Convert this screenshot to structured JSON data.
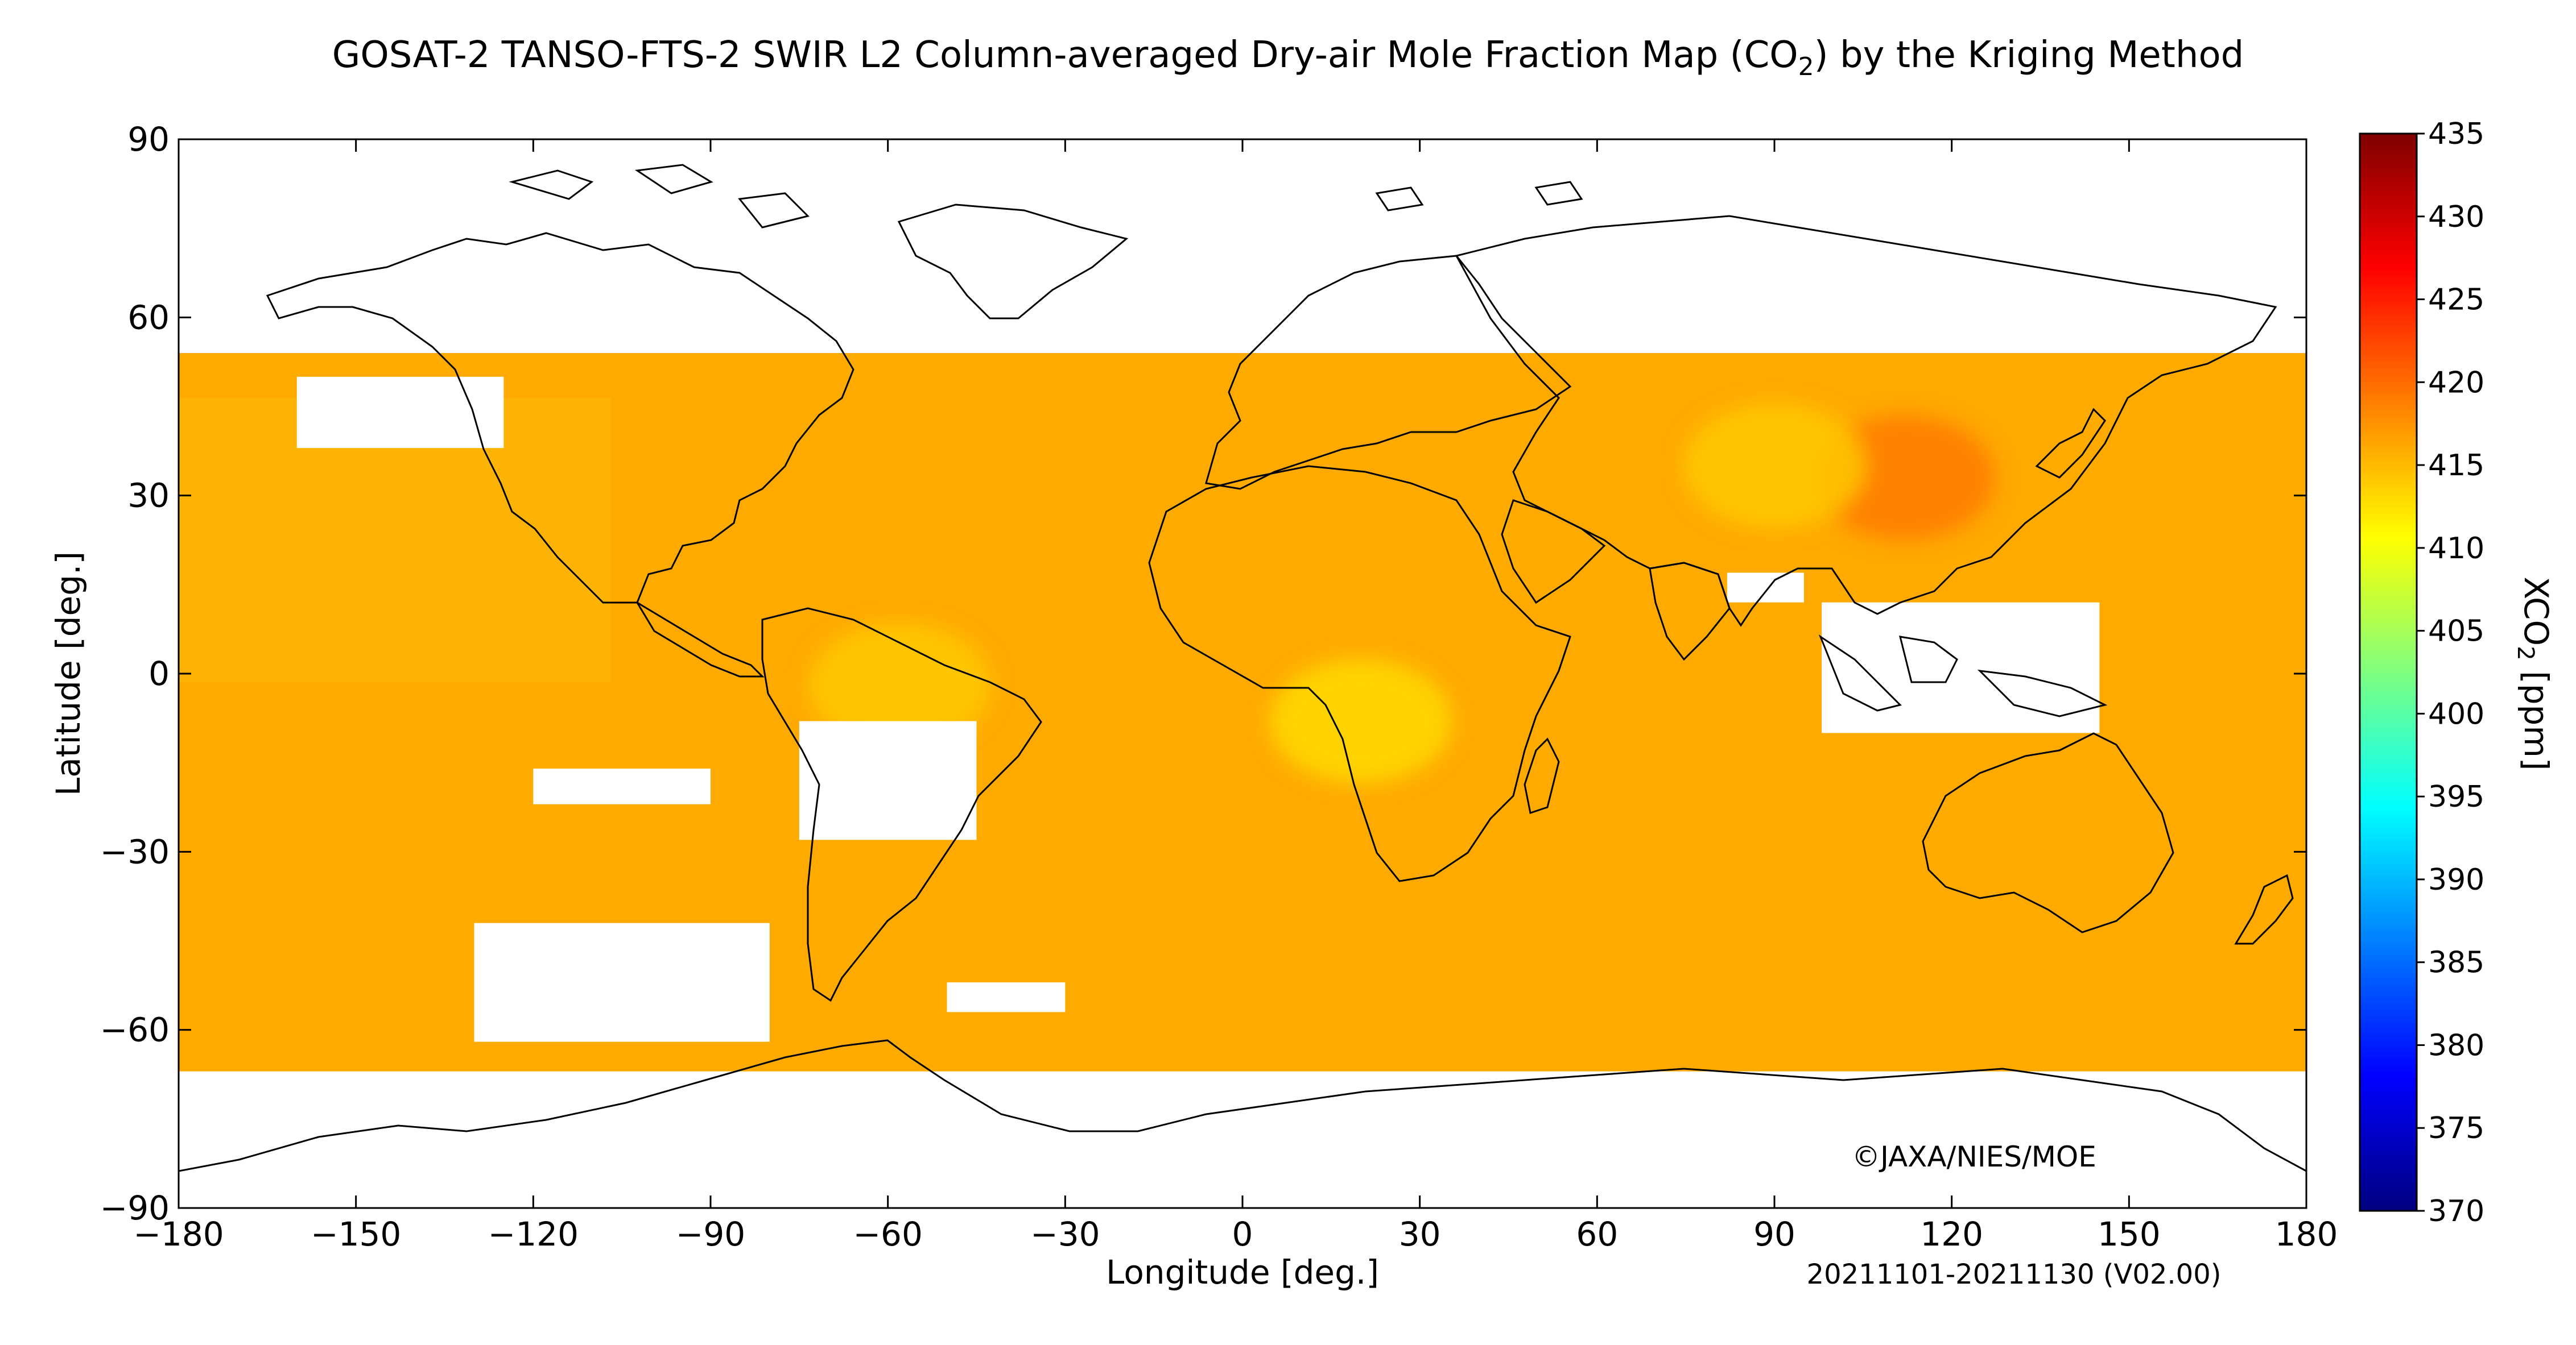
{
  "title": {
    "prefix": "GOSAT-2 TANSO-FTS-2 SWIR L2 Column-averaged Dry-air Mole Fraction Map (CO",
    "sub": "2",
    "suffix": ") by the Kriging Method"
  },
  "axes": {
    "xlabel": "Longitude [deg.]",
    "ylabel": "Latitude [deg.]",
    "xlim": [
      -180,
      180
    ],
    "ylim": [
      -90,
      90
    ],
    "x_ticks": [
      {
        "value": -180,
        "label": "−180"
      },
      {
        "value": -150,
        "label": "−150"
      },
      {
        "value": -120,
        "label": "−120"
      },
      {
        "value": -90,
        "label": "−90"
      },
      {
        "value": -60,
        "label": "−60"
      },
      {
        "value": -30,
        "label": "−30"
      },
      {
        "value": 0,
        "label": "0"
      },
      {
        "value": 30,
        "label": "30"
      },
      {
        "value": 60,
        "label": "60"
      },
      {
        "value": 90,
        "label": "90"
      },
      {
        "value": 120,
        "label": "120"
      },
      {
        "value": 150,
        "label": "150"
      },
      {
        "value": 180,
        "label": "180"
      }
    ],
    "y_ticks": [
      {
        "value": 90,
        "label": "90"
      },
      {
        "value": 60,
        "label": "60"
      },
      {
        "value": 30,
        "label": "30"
      },
      {
        "value": 0,
        "label": "0"
      },
      {
        "value": -30,
        "label": "−30"
      },
      {
        "value": -60,
        "label": "−60"
      },
      {
        "value": -90,
        "label": "−90"
      }
    ]
  },
  "colorbar": {
    "label_prefix": "XCO",
    "label_sub": "2",
    "label_suffix": " [ppm]",
    "min": 370,
    "max": 435,
    "ticks": [
      {
        "value": 435,
        "label": "435"
      },
      {
        "value": 430,
        "label": "430"
      },
      {
        "value": 425,
        "label": "425"
      },
      {
        "value": 420,
        "label": "420"
      },
      {
        "value": 415,
        "label": "415"
      },
      {
        "value": 410,
        "label": "410"
      },
      {
        "value": 405,
        "label": "405"
      },
      {
        "value": 400,
        "label": "400"
      },
      {
        "value": 395,
        "label": "395"
      },
      {
        "value": 390,
        "label": "390"
      },
      {
        "value": 385,
        "label": "385"
      },
      {
        "value": 380,
        "label": "380"
      },
      {
        "value": 375,
        "label": "375"
      },
      {
        "value": 370,
        "label": "370"
      }
    ],
    "colors": [
      "#00007f",
      "#0000ff",
      "#007fff",
      "#00ffff",
      "#7fff7f",
      "#ffff00",
      "#ff7f00",
      "#ff0000",
      "#7f0000"
    ]
  },
  "copyright": "©JAXA/NIES/MOE",
  "period": "20211101-20211130 (V02.00)",
  "chart_data": {
    "type": "heatmap",
    "variable": "XCO2",
    "unit": "ppm",
    "period": "20211101-20211130",
    "version": "V02.00",
    "typical_value": 416,
    "data_lat_range": [
      -67,
      54
    ],
    "highlights": [
      {
        "region": "Eastern China",
        "lon": 112,
        "lat": 33,
        "value": 419
      },
      {
        "region": "Central Africa",
        "lon": 20,
        "lat": -8,
        "value": 413
      },
      {
        "region": "South America interior",
        "lon": -58,
        "lat": -2,
        "value": 414
      },
      {
        "region": "Central Asia",
        "lon": 90,
        "lat": 35,
        "value": 414
      }
    ],
    "missing_regions": [
      {
        "region": "Maritime Continent",
        "lon": [
          98,
          145
        ],
        "lat": [
          -10,
          12
        ]
      },
      {
        "region": "Bay of Bengal",
        "lon": [
          82,
          95
        ],
        "lat": [
          12,
          17
        ]
      },
      {
        "region": "Central South America",
        "lon": [
          -75,
          -45
        ],
        "lat": [
          -28,
          -8
        ]
      },
      {
        "region": "South Pacific",
        "lon": [
          -120,
          -90
        ],
        "lat": [
          -22,
          -16
        ]
      },
      {
        "region": "Southern Ocean Pacific sector",
        "lon": [
          -130,
          -80
        ],
        "lat": [
          -62,
          -42
        ]
      },
      {
        "region": "Southern Ocean Atlantic sector",
        "lon": [
          -50,
          -30
        ],
        "lat": [
          -57,
          -52
        ]
      },
      {
        "region": "North Pacific",
        "lon": [
          -160,
          -125
        ],
        "lat": [
          38,
          50
        ]
      },
      {
        "region": "Polar latitudes north",
        "lon": [
          -180,
          180
        ],
        "lat": [
          54,
          90
        ]
      },
      {
        "region": "Polar latitudes south",
        "lon": [
          -180,
          180
        ],
        "lat": [
          -90,
          -67
        ]
      }
    ]
  }
}
